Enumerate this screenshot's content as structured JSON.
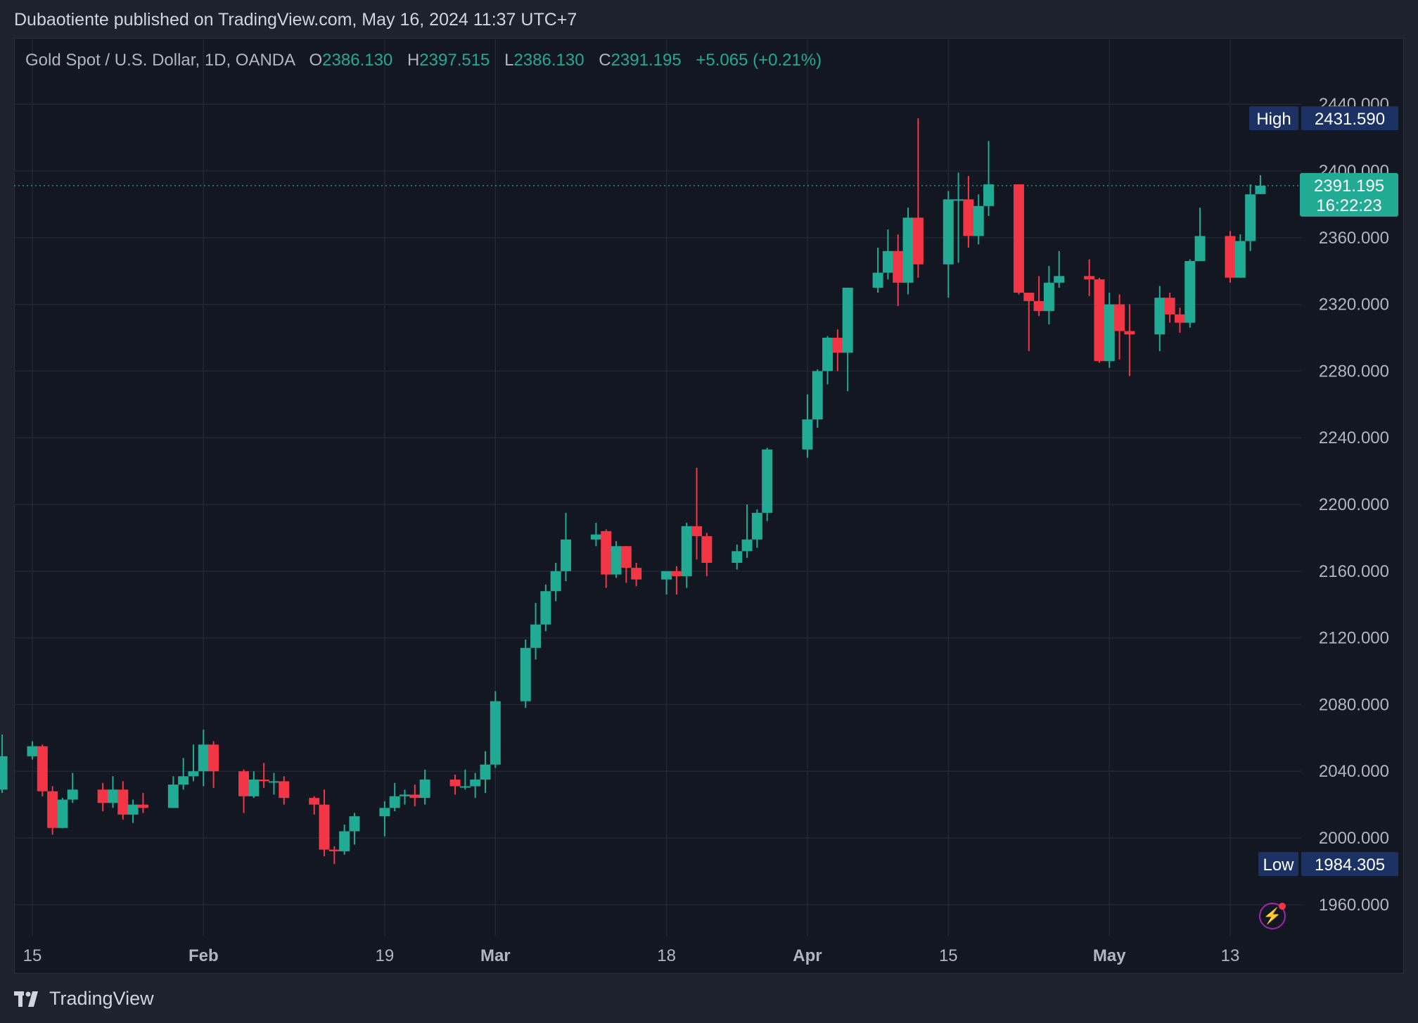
{
  "header": {
    "published_text": "Dubaotiente published on TradingView.com, May 16, 2024 11:37 UTC+7"
  },
  "legend": {
    "symbol": "Gold Spot / U.S. Dollar, 1D, OANDA",
    "o_label": "O",
    "o_value": "2386.130",
    "h_label": "H",
    "h_value": "2397.515",
    "l_label": "L",
    "l_value": "2386.130",
    "c_label": "C",
    "c_value": "2391.195",
    "change": "+5.065 (+0.21%)"
  },
  "badges": {
    "high_label": "High",
    "high_value": "2431.590",
    "low_label": "Low",
    "low_value": "1984.305",
    "last_price": "2391.195",
    "countdown": "16:22:23"
  },
  "footer": {
    "brand": "TradingView"
  },
  "colors": {
    "up": "#22ab94",
    "down": "#f23645",
    "background": "#131722",
    "grid": "#232733",
    "badge": "#1c3264"
  },
  "chart_data": {
    "type": "candlestick",
    "ylim": [
      1940,
      2460
    ],
    "y_ticks": [
      "2440.000",
      "2400.000",
      "2360.000",
      "2320.000",
      "2280.000",
      "2240.000",
      "2200.000",
      "2160.000",
      "2120.000",
      "2080.000",
      "2040.000",
      "2000.000",
      "1960.000"
    ],
    "x_ticks": [
      "15",
      "Feb",
      "19",
      "Mar",
      "18",
      "Apr",
      "15",
      "May",
      "13"
    ],
    "x_tick_dates": [
      "2024-01-15",
      "2024-02-01",
      "2024-02-19",
      "2024-03-01",
      "2024-03-18",
      "2024-04-01",
      "2024-04-15",
      "2024-05-01",
      "2024-05-13"
    ],
    "candles": [
      {
        "date": "2024-01-12",
        "o": 2029,
        "h": 2062,
        "l": 2027,
        "c": 2049
      },
      {
        "date": "2024-01-15",
        "o": 2049,
        "h": 2058,
        "l": 2047,
        "c": 2055
      },
      {
        "date": "2024-01-16",
        "o": 2055,
        "h": 2056,
        "l": 2025,
        "c": 2028
      },
      {
        "date": "2024-01-17",
        "o": 2028,
        "h": 2031,
        "l": 2002,
        "c": 2006
      },
      {
        "date": "2024-01-18",
        "o": 2006,
        "h": 2024,
        "l": 2006,
        "c": 2023
      },
      {
        "date": "2024-01-19",
        "o": 2023,
        "h": 2039,
        "l": 2021,
        "c": 2029
      },
      {
        "date": "2024-01-22",
        "o": 2029,
        "h": 2033,
        "l": 2016,
        "c": 2021
      },
      {
        "date": "2024-01-23",
        "o": 2021,
        "h": 2037,
        "l": 2018,
        "c": 2029
      },
      {
        "date": "2024-01-24",
        "o": 2029,
        "h": 2034,
        "l": 2011,
        "c": 2014
      },
      {
        "date": "2024-01-25",
        "o": 2014,
        "h": 2023,
        "l": 2009,
        "c": 2020
      },
      {
        "date": "2024-01-26",
        "o": 2020,
        "h": 2027,
        "l": 2015,
        "c": 2018
      },
      {
        "date": "2024-01-29",
        "o": 2018,
        "h": 2037,
        "l": 2018,
        "c": 2032
      },
      {
        "date": "2024-01-30",
        "o": 2032,
        "h": 2048,
        "l": 2029,
        "c": 2037
      },
      {
        "date": "2024-01-31",
        "o": 2037,
        "h": 2056,
        "l": 2034,
        "c": 2040
      },
      {
        "date": "2024-02-01",
        "o": 2040,
        "h": 2065,
        "l": 2031,
        "c": 2056
      },
      {
        "date": "2024-02-02",
        "o": 2056,
        "h": 2058,
        "l": 2030,
        "c": 2040
      },
      {
        "date": "2024-02-05",
        "o": 2040,
        "h": 2041,
        "l": 2015,
        "c": 2025
      },
      {
        "date": "2024-02-06",
        "o": 2025,
        "h": 2040,
        "l": 2024,
        "c": 2035
      },
      {
        "date": "2024-02-07",
        "o": 2035,
        "h": 2045,
        "l": 2030,
        "c": 2034
      },
      {
        "date": "2024-02-08",
        "o": 2034,
        "h": 2039,
        "l": 2026,
        "c": 2034
      },
      {
        "date": "2024-02-09",
        "o": 2034,
        "h": 2037,
        "l": 2020,
        "c": 2024
      },
      {
        "date": "2024-02-12",
        "o": 2024,
        "h": 2025,
        "l": 2014,
        "c": 2020
      },
      {
        "date": "2024-02-13",
        "o": 2020,
        "h": 2029,
        "l": 1989,
        "c": 1993
      },
      {
        "date": "2024-02-14",
        "o": 1993,
        "h": 1995,
        "l": 1984.305,
        "c": 1992
      },
      {
        "date": "2024-02-15",
        "o": 1992,
        "h": 2008,
        "l": 1990,
        "c": 2004
      },
      {
        "date": "2024-02-16",
        "o": 2004,
        "h": 2015,
        "l": 1996,
        "c": 2013
      },
      {
        "date": "2024-02-19",
        "o": 2013,
        "h": 2022,
        "l": 2001,
        "c": 2018
      },
      {
        "date": "2024-02-20",
        "o": 2018,
        "h": 2033,
        "l": 2016,
        "c": 2025
      },
      {
        "date": "2024-02-21",
        "o": 2025,
        "h": 2029,
        "l": 2020,
        "c": 2026
      },
      {
        "date": "2024-02-22",
        "o": 2026,
        "h": 2032,
        "l": 2019,
        "c": 2024
      },
      {
        "date": "2024-02-23",
        "o": 2024,
        "h": 2041,
        "l": 2020,
        "c": 2035
      },
      {
        "date": "2024-02-26",
        "o": 2035,
        "h": 2038,
        "l": 2026,
        "c": 2031
      },
      {
        "date": "2024-02-27",
        "o": 2031,
        "h": 2041,
        "l": 2029,
        "c": 2031
      },
      {
        "date": "2024-02-28",
        "o": 2031,
        "h": 2039,
        "l": 2024,
        "c": 2035
      },
      {
        "date": "2024-02-29",
        "o": 2035,
        "h": 2052,
        "l": 2027,
        "c": 2044
      },
      {
        "date": "2024-03-01",
        "o": 2044,
        "h": 2088,
        "l": 2042,
        "c": 2082
      },
      {
        "date": "2024-03-04",
        "o": 2082,
        "h": 2119,
        "l": 2078,
        "c": 2114
      },
      {
        "date": "2024-03-05",
        "o": 2114,
        "h": 2141,
        "l": 2107,
        "c": 2128
      },
      {
        "date": "2024-03-06",
        "o": 2128,
        "h": 2152,
        "l": 2124,
        "c": 2148
      },
      {
        "date": "2024-03-07",
        "o": 2148,
        "h": 2165,
        "l": 2142,
        "c": 2160
      },
      {
        "date": "2024-03-08",
        "o": 2160,
        "h": 2195,
        "l": 2154,
        "c": 2179
      },
      {
        "date": "2024-03-11",
        "o": 2179,
        "h": 2189,
        "l": 2175,
        "c": 2182
      },
      {
        "date": "2024-03-12",
        "o": 2184,
        "h": 2185,
        "l": 2150,
        "c": 2158
      },
      {
        "date": "2024-03-13",
        "o": 2158,
        "h": 2178,
        "l": 2156,
        "c": 2175
      },
      {
        "date": "2024-03-14",
        "o": 2175,
        "h": 2175,
        "l": 2153,
        "c": 2162
      },
      {
        "date": "2024-03-15",
        "o": 2162,
        "h": 2165,
        "l": 2151,
        "c": 2155
      },
      {
        "date": "2024-03-18",
        "o": 2155,
        "h": 2160,
        "l": 2146,
        "c": 2160
      },
      {
        "date": "2024-03-19",
        "o": 2160,
        "h": 2163,
        "l": 2146,
        "c": 2157
      },
      {
        "date": "2024-03-20",
        "o": 2157,
        "h": 2189,
        "l": 2150,
        "c": 2187
      },
      {
        "date": "2024-03-21",
        "o": 2187,
        "h": 2222,
        "l": 2167,
        "c": 2181
      },
      {
        "date": "2024-03-22",
        "o": 2181,
        "h": 2183,
        "l": 2157,
        "c": 2165
      },
      {
        "date": "2024-03-25",
        "o": 2165,
        "h": 2176,
        "l": 2161,
        "c": 2172
      },
      {
        "date": "2024-03-26",
        "o": 2172,
        "h": 2200,
        "l": 2168,
        "c": 2179
      },
      {
        "date": "2024-03-27",
        "o": 2179,
        "h": 2197,
        "l": 2174,
        "c": 2195
      },
      {
        "date": "2024-03-28",
        "o": 2195,
        "h": 2234,
        "l": 2190,
        "c": 2233
      },
      {
        "date": "2024-04-01",
        "o": 2233,
        "h": 2266,
        "l": 2228,
        "c": 2251
      },
      {
        "date": "2024-04-02",
        "o": 2251,
        "h": 2281,
        "l": 2246,
        "c": 2280
      },
      {
        "date": "2024-04-03",
        "o": 2280,
        "h": 2301,
        "l": 2272,
        "c": 2300
      },
      {
        "date": "2024-04-04",
        "o": 2300,
        "h": 2305,
        "l": 2280,
        "c": 2291
      },
      {
        "date": "2024-04-05",
        "o": 2291,
        "h": 2330,
        "l": 2268,
        "c": 2330
      },
      {
        "date": "2024-04-08",
        "o": 2330,
        "h": 2354,
        "l": 2327,
        "c": 2339
      },
      {
        "date": "2024-04-09",
        "o": 2339,
        "h": 2365,
        "l": 2335,
        "c": 2352
      },
      {
        "date": "2024-04-10",
        "o": 2352,
        "h": 2362,
        "l": 2319,
        "c": 2333
      },
      {
        "date": "2024-04-11",
        "o": 2333,
        "h": 2378,
        "l": 2326,
        "c": 2372
      },
      {
        "date": "2024-04-12",
        "o": 2372,
        "h": 2431.59,
        "l": 2336,
        "c": 2344
      },
      {
        "date": "2024-04-15",
        "o": 2344,
        "h": 2388,
        "l": 2324,
        "c": 2383
      },
      {
        "date": "2024-04-16",
        "o": 2383,
        "h": 2399,
        "l": 2345,
        "c": 2383
      },
      {
        "date": "2024-04-17",
        "o": 2383,
        "h": 2397,
        "l": 2354,
        "c": 2361
      },
      {
        "date": "2024-04-18",
        "o": 2361,
        "h": 2386,
        "l": 2356,
        "c": 2379
      },
      {
        "date": "2024-04-19",
        "o": 2379,
        "h": 2418,
        "l": 2373,
        "c": 2392
      },
      {
        "date": "2024-04-22",
        "o": 2392,
        "h": 2392,
        "l": 2326,
        "c": 2327
      },
      {
        "date": "2024-04-23",
        "o": 2327,
        "h": 2327,
        "l": 2292,
        "c": 2322
      },
      {
        "date": "2024-04-24",
        "o": 2322,
        "h": 2337,
        "l": 2313,
        "c": 2316
      },
      {
        "date": "2024-04-25",
        "o": 2316,
        "h": 2343,
        "l": 2308,
        "c": 2333
      },
      {
        "date": "2024-04-26",
        "o": 2333,
        "h": 2352,
        "l": 2330,
        "c": 2337
      },
      {
        "date": "2024-04-29",
        "o": 2337,
        "h": 2347,
        "l": 2325,
        "c": 2335
      },
      {
        "date": "2024-04-30",
        "o": 2335,
        "h": 2336,
        "l": 2285,
        "c": 2286
      },
      {
        "date": "2024-05-01",
        "o": 2286,
        "h": 2327,
        "l": 2282,
        "c": 2320
      },
      {
        "date": "2024-05-02",
        "o": 2320,
        "h": 2326,
        "l": 2287,
        "c": 2304
      },
      {
        "date": "2024-05-03",
        "o": 2304,
        "h": 2320,
        "l": 2277,
        "c": 2302
      },
      {
        "date": "2024-05-06",
        "o": 2302,
        "h": 2331,
        "l": 2292,
        "c": 2324
      },
      {
        "date": "2024-05-07",
        "o": 2324,
        "h": 2327,
        "l": 2309,
        "c": 2314
      },
      {
        "date": "2024-05-08",
        "o": 2314,
        "h": 2318,
        "l": 2303,
        "c": 2309
      },
      {
        "date": "2024-05-09",
        "o": 2309,
        "h": 2347,
        "l": 2306,
        "c": 2346
      },
      {
        "date": "2024-05-10",
        "o": 2346,
        "h": 2378,
        "l": 2346,
        "c": 2361
      },
      {
        "date": "2024-05-13",
        "o": 2361,
        "h": 2364,
        "l": 2333,
        "c": 2336
      },
      {
        "date": "2024-05-14",
        "o": 2336,
        "h": 2362,
        "l": 2336,
        "c": 2358
      },
      {
        "date": "2024-05-15",
        "o": 2358,
        "h": 2392,
        "l": 2352,
        "c": 2386
      },
      {
        "date": "2024-05-16",
        "o": 2386.13,
        "h": 2397.515,
        "l": 2386.13,
        "c": 2391.195
      }
    ]
  }
}
